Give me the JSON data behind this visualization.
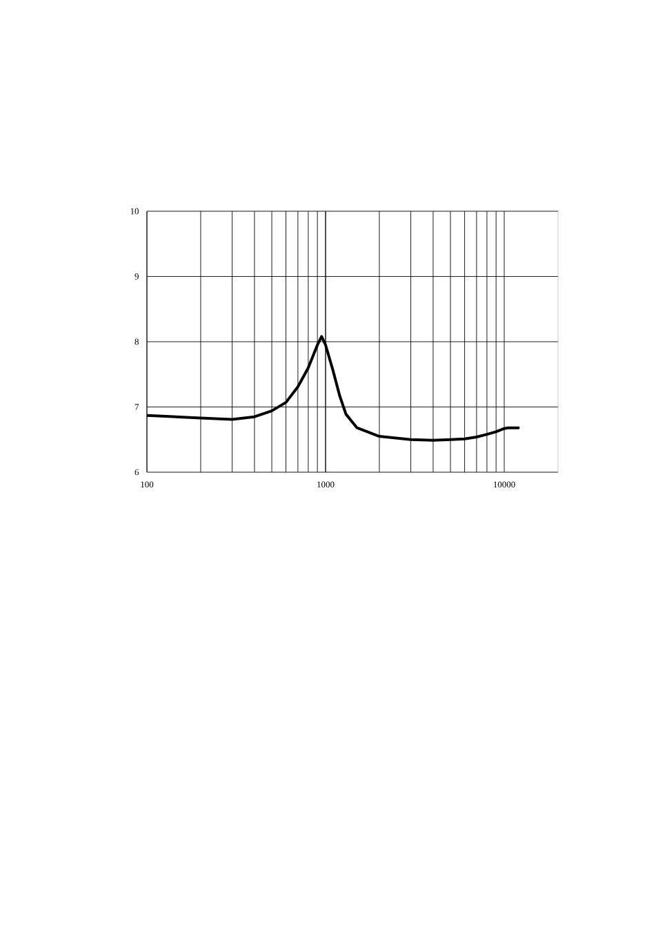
{
  "chart_data": {
    "type": "line",
    "log": "x",
    "xlim": [
      100,
      20000
    ],
    "xticks": [
      100,
      1000,
      10000
    ],
    "ylim": [
      6,
      10
    ],
    "yticks": [
      6,
      7,
      8,
      9,
      10
    ],
    "grid": true,
    "series": [
      {
        "color": "#000000",
        "x": [
          100,
          200,
          300,
          400,
          500,
          600,
          700,
          800,
          900,
          950,
          1000,
          1100,
          1200,
          1300,
          1500,
          2000,
          3000,
          4000,
          5000,
          6000,
          7000,
          8000,
          9000,
          10000,
          10500,
          12000
        ],
        "values": [
          6.87,
          6.83,
          6.81,
          6.85,
          6.94,
          7.07,
          7.31,
          7.6,
          7.95,
          8.08,
          7.95,
          7.56,
          7.17,
          6.89,
          6.68,
          6.55,
          6.5,
          6.49,
          6.5,
          6.51,
          6.54,
          6.58,
          6.62,
          6.67,
          6.68,
          6.68
        ]
      }
    ]
  }
}
